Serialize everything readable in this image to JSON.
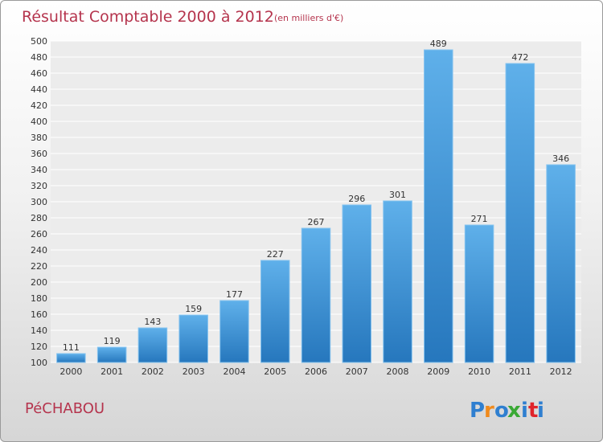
{
  "commune": "PéCHABOU",
  "logo": {
    "text": "Proxiti",
    "letters": [
      "P",
      "r",
      "o",
      "x",
      "i",
      "t",
      "i"
    ],
    "colors": [
      "#2f7fd0",
      "#f08a1c",
      "#2f7fd0",
      "#3aa935",
      "#2f7fd0",
      "#e0242b",
      "#2f7fd0"
    ]
  },
  "chart_data": {
    "type": "bar",
    "title": "Résultat Comptable 2000 à 2012",
    "subtitle": "(en milliers d'€)",
    "xlabel": "",
    "ylabel": "",
    "categories": [
      "2000",
      "2001",
      "2002",
      "2003",
      "2004",
      "2005",
      "2006",
      "2007",
      "2008",
      "2009",
      "2010",
      "2011",
      "2012"
    ],
    "values": [
      111,
      119,
      143,
      159,
      177,
      227,
      267,
      296,
      301,
      489,
      271,
      472,
      346
    ],
    "ylim": [
      100,
      500
    ],
    "ytick_step": 20,
    "grid": true,
    "bar_color": "#3b8fd6"
  }
}
